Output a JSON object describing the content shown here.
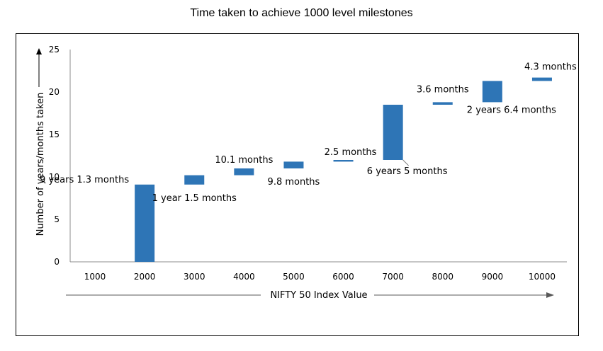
{
  "chart_data": {
    "type": "bar",
    "title": "Time taken to achieve 1000 level milestones",
    "xlabel": "NIFTY 50 Index Value",
    "ylabel": "Number of years/months taken",
    "ylim": [
      0,
      25
    ],
    "yticks": [
      "0",
      "5",
      "10",
      "15",
      "20",
      "25"
    ],
    "categories": [
      "1000",
      "2000",
      "3000",
      "4000",
      "5000",
      "6000",
      "7000",
      "8000",
      "9000",
      "10000"
    ],
    "bars": [
      {
        "category": "2000",
        "base": 0,
        "top": 9.1,
        "label": "9 years 1.3 months"
      },
      {
        "category": "3000",
        "base": 9.1,
        "top": 10.2,
        "label": "1 year 1.5 months"
      },
      {
        "category": "4000",
        "base": 10.2,
        "top": 11.0,
        "label": "10.1 months"
      },
      {
        "category": "5000",
        "base": 11.0,
        "top": 11.8,
        "label": "9.8 months"
      },
      {
        "category": "6000",
        "base": 11.8,
        "top": 12.0,
        "label": "2.5 months"
      },
      {
        "category": "7000",
        "base": 12.0,
        "top": 18.5,
        "label": "6 years 5 months"
      },
      {
        "category": "8000",
        "base": 18.5,
        "top": 18.8,
        "label": "3.6 months"
      },
      {
        "category": "9000",
        "base": 18.8,
        "top": 21.3,
        "label": "2 years 6.4 months"
      },
      {
        "category": "10000",
        "base": 21.3,
        "top": 21.7,
        "label": "4.3 months"
      }
    ],
    "bar_color": "#2e75b6",
    "grid": false,
    "legend": "none"
  }
}
